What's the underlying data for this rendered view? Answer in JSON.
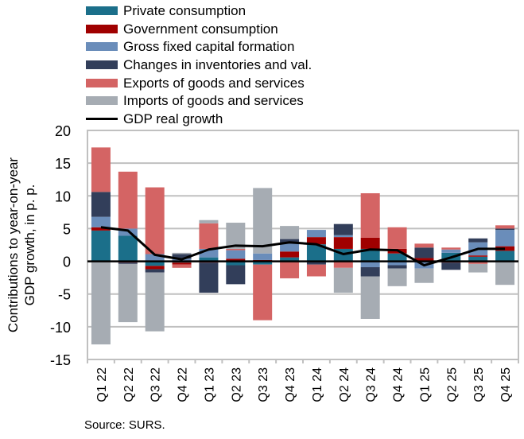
{
  "chart_data": {
    "type": "bar",
    "stacked": true,
    "title": "",
    "xlabel": "",
    "ylabel": "Contributions to year-on-year GDP growth, in p. p.",
    "ylim": [
      -15,
      20
    ],
    "yticks": [
      20,
      15,
      10,
      5,
      0,
      -5,
      -10,
      -15
    ],
    "grid": true,
    "legend_position": "top",
    "categories": [
      "Q1 22",
      "Q2 22",
      "Q3 22",
      "Q4 22",
      "Q1 23",
      "Q2 23",
      "Q3 23",
      "Q4 23",
      "Q1 24",
      "Q2 24",
      "Q3 24",
      "Q4 24",
      "Q1 25",
      "Q2 25",
      "Q3 25",
      "Q4 25"
    ],
    "series": [
      {
        "name": "Private consumption",
        "color": "#1B6F8A",
        "values": [
          4.7,
          3.9,
          -0.7,
          -0.2,
          0.6,
          -0.6,
          -0.5,
          0.6,
          2.6,
          1.9,
          1.9,
          1.2,
          0.1,
          1.3,
          0.7,
          1.6
        ]
      },
      {
        "name": "Government consumption",
        "color": "#A00000",
        "values": [
          0.5,
          -0.2,
          -0.5,
          -0.3,
          -0.2,
          0.4,
          0.2,
          0.9,
          1.1,
          1.8,
          1.7,
          0.7,
          0.4,
          -0.2,
          0.2,
          0.7
        ]
      },
      {
        "name": "Gross fixed capital formation",
        "color": "#6A8DBA",
        "values": [
          1.6,
          1.1,
          1.1,
          0.4,
          1.3,
          1.3,
          1.0,
          1.2,
          1.1,
          0.3,
          -0.9,
          -0.6,
          -1.1,
          0.5,
          2.0,
          2.5
        ]
      },
      {
        "name": "Changes in inventories and val.",
        "color": "#323E5A",
        "values": [
          3.8,
          -0.2,
          -0.5,
          0.7,
          -4.6,
          -2.9,
          0.0,
          0.7,
          -0.5,
          1.7,
          -1.4,
          -0.5,
          1.6,
          -1.1,
          0.6,
          0.2
        ]
      },
      {
        "name": "Exports of goods and services",
        "color": "#D46464",
        "values": [
          6.8,
          8.7,
          10.2,
          -0.5,
          3.9,
          0.2,
          -8.5,
          -2.6,
          -1.8,
          -1.0,
          6.8,
          3.3,
          0.6,
          0.3,
          -0.4,
          0.5
        ]
      },
      {
        "name": "Imports of goods and services",
        "color": "#A6ACB3",
        "values": [
          -12.7,
          -8.9,
          -9.0,
          0.2,
          0.5,
          4.0,
          10.0,
          2.0,
          0.0,
          -3.8,
          -6.5,
          -2.7,
          -2.2,
          0.0,
          -1.3,
          -3.6
        ]
      }
    ],
    "line": {
      "name": "GDP real growth",
      "color": "#000000",
      "values": [
        5.2,
        4.7,
        1.0,
        0.3,
        1.8,
        2.4,
        2.3,
        2.9,
        2.6,
        1.1,
        1.8,
        1.7,
        -0.6,
        0.6,
        1.9,
        1.9
      ]
    }
  },
  "legend": [
    {
      "label": "Private consumption",
      "color": "#1B6F8A",
      "kind": "bar"
    },
    {
      "label": "Government consumption",
      "color": "#A00000",
      "kind": "bar"
    },
    {
      "label": "Gross fixed capital formation",
      "color": "#6A8DBA",
      "kind": "bar"
    },
    {
      "label": "Changes in inventories and val.",
      "color": "#323E5A",
      "kind": "bar"
    },
    {
      "label": "Exports of goods and services",
      "color": "#D46464",
      "kind": "bar"
    },
    {
      "label": "Imports of goods and services",
      "color": "#A6ACB3",
      "kind": "bar"
    },
    {
      "label": "GDP real growth",
      "color": "#000000",
      "kind": "line"
    }
  ],
  "ylabel_lines": [
    "Contributions to year-on-year",
    "GDP growth, in p. p."
  ],
  "source": "Source: SURS."
}
